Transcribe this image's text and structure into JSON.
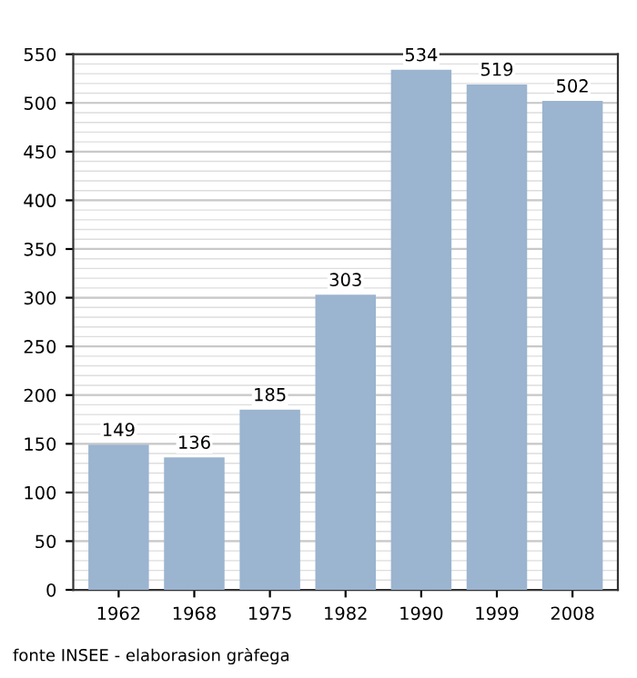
{
  "chart_data": {
    "type": "bar",
    "categories": [
      "1962",
      "1968",
      "1975",
      "1982",
      "1990",
      "1999",
      "2008"
    ],
    "values": [
      149,
      136,
      185,
      303,
      534,
      519,
      502
    ],
    "color": "#9bb4cf",
    "ylim": [
      0,
      550
    ],
    "yticks": [
      0,
      50,
      100,
      150,
      200,
      250,
      300,
      350,
      400,
      450,
      500,
      550
    ],
    "grid": "y",
    "data_labels": true,
    "annotations": [
      "fonte INSEE - elaborasion gràfega"
    ]
  }
}
